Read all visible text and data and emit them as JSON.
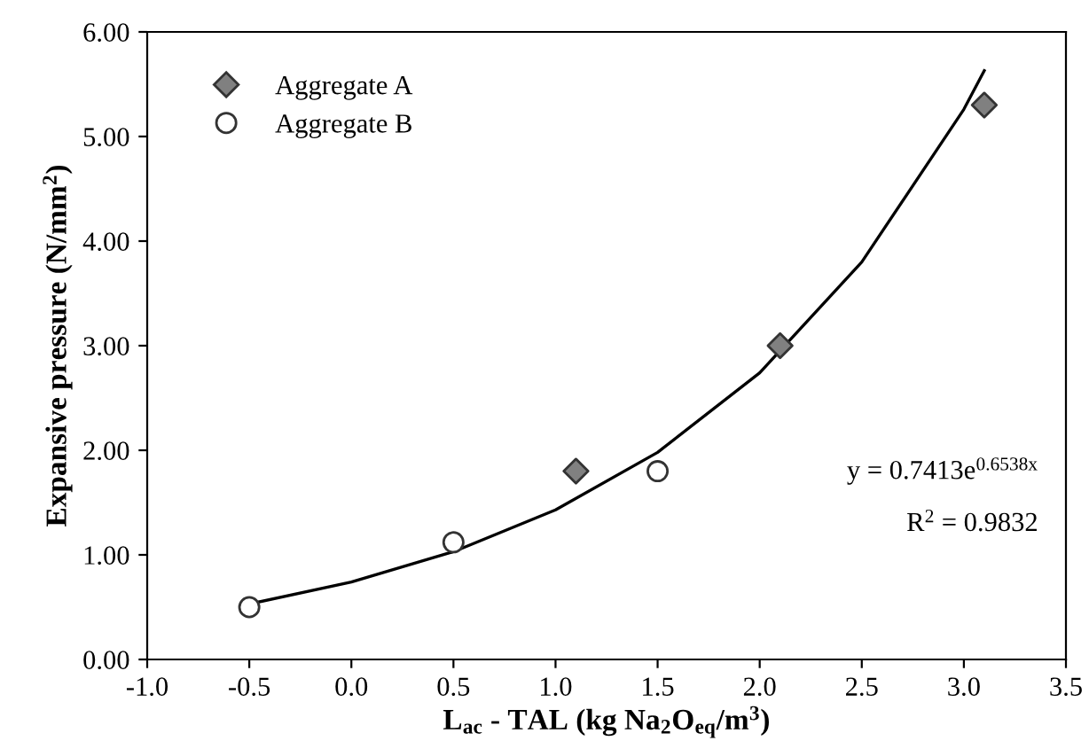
{
  "chart_data": {
    "type": "scatter",
    "xlabel": "L$_{ac}$ - TAL (kg Na$_{2}$O$_{eq}$/m$^{3}$)",
    "ylabel": "Expansive pressure (N/mm$^{2}$)",
    "xlim": [
      -1.0,
      3.5
    ],
    "ylim": [
      0,
      6
    ],
    "xticks": [
      {
        "value": -1.0,
        "label": "-1.0"
      },
      {
        "value": -0.5,
        "label": "-0.5"
      },
      {
        "value": 0,
        "label": "0.0"
      },
      {
        "value": 0.5,
        "label": "0.5"
      },
      {
        "value": 1.0,
        "label": "1.0"
      },
      {
        "value": 1.5,
        "label": "1.5"
      },
      {
        "value": 2.0,
        "label": "2.0"
      },
      {
        "value": 2.5,
        "label": "2.5"
      },
      {
        "value": 3.0,
        "label": "3.0"
      },
      {
        "value": 3.5,
        "label": "3.5"
      }
    ],
    "yticks": [
      {
        "value": 0,
        "label": "0.00"
      },
      {
        "value": 1,
        "label": "1.00"
      },
      {
        "value": 2,
        "label": "2.00"
      },
      {
        "value": 3,
        "label": "3.00"
      },
      {
        "value": 4,
        "label": "4.00"
      },
      {
        "value": 5,
        "label": "5.00"
      },
      {
        "value": 6,
        "label": "6.00"
      }
    ],
    "grid": false,
    "legend": "top left",
    "series": [
      {
        "name": "Aggregate A",
        "marker": "diamond",
        "color": "#808080",
        "x": [
          1.1,
          2.1,
          3.1
        ],
        "values": [
          1.8,
          3.0,
          5.3
        ]
      },
      {
        "name": "Aggregate B",
        "marker": "circle",
        "color": "#ffffff",
        "x": [
          -0.5,
          0.5,
          1.5
        ],
        "values": [
          0.5,
          1.12,
          1.8
        ]
      },
      {
        "type": "line",
        "marker": "none",
        "line_style": "solid",
        "color": "#000000",
        "x": [
          -0.5,
          0.0,
          0.5,
          1.0,
          1.5,
          2.0,
          2.5,
          3.0,
          3.1
        ],
        "values": [
          0.53,
          0.74,
          1.03,
          1.43,
          1.98,
          2.74,
          3.8,
          5.26,
          5.63
        ]
      }
    ],
    "annotations": [
      {
        "text": "y = 0.7413e$^{0.6538x}$"
      },
      {
        "text": "R$^{2}$ = 0.9832"
      }
    ]
  }
}
